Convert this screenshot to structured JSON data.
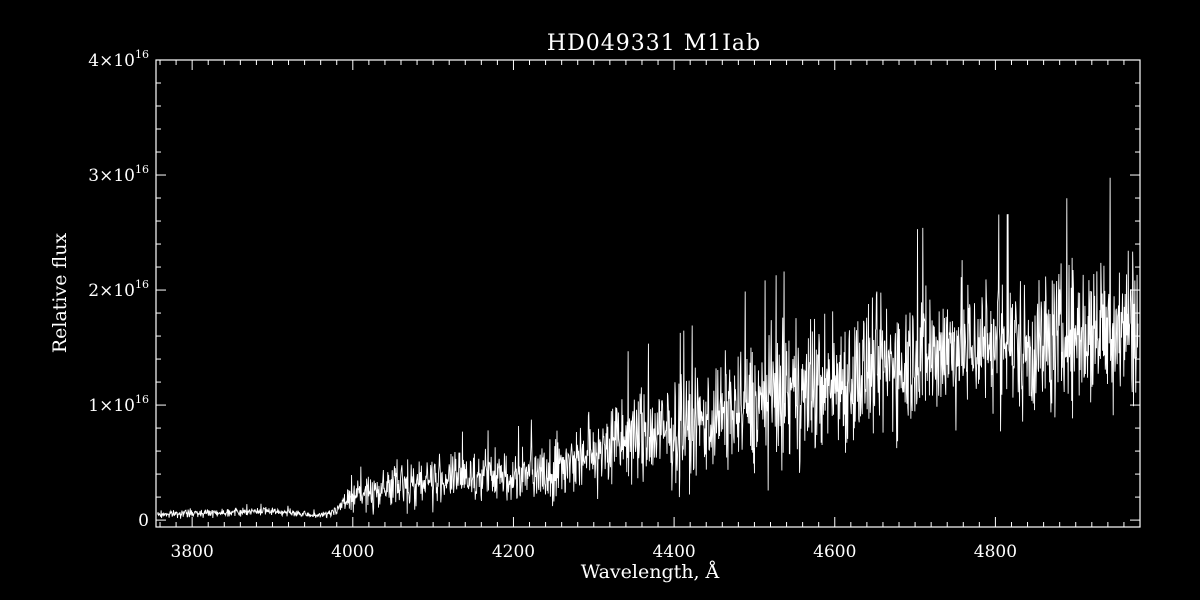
{
  "chart_data": {
    "type": "line",
    "title": "HD049331  M1Iab",
    "xlabel": "Wavelength, Å",
    "ylabel": "Relative flux",
    "xlim": [
      3755,
      4980
    ],
    "ylim": [
      -600000000000000.0,
      4e+16
    ],
    "x_ticks": [
      {
        "value": 3800,
        "label": "3800"
      },
      {
        "value": 4000,
        "label": "4000"
      },
      {
        "value": 4200,
        "label": "4200"
      },
      {
        "value": 4400,
        "label": "4400"
      },
      {
        "value": 4600,
        "label": "4600"
      },
      {
        "value": 4800,
        "label": "4800"
      }
    ],
    "y_ticks": [
      {
        "value": 0,
        "mantissa": "0",
        "exponent": ""
      },
      {
        "value": 1e+16,
        "mantissa": "1×10",
        "exponent": "16"
      },
      {
        "value": 2e+16,
        "mantissa": "2×10",
        "exponent": "16"
      },
      {
        "value": 3e+16,
        "mantissa": "3×10",
        "exponent": "16"
      },
      {
        "value": 4e+16,
        "mantissa": "4×10",
        "exponent": "16"
      }
    ],
    "grid": false,
    "legend": "none",
    "colors": {
      "background": "#000000",
      "foreground": "#ffffff"
    },
    "series": [
      {
        "envelope_x": [
          3760,
          3800,
          3850,
          3900,
          3950,
          3970,
          4000,
          4050,
          4100,
          4150,
          4200,
          4250,
          4300,
          4350,
          4400,
          4450,
          4500,
          4550,
          4600,
          4650,
          4700,
          4750,
          4800,
          4850,
          4900,
          4950,
          4980
        ],
        "mean": [
          500000000000000.0,
          600000000000000.0,
          700000000000000.0,
          800000000000000.0,
          400000000000000.0,
          500000000000000.0,
          2000000000000000.0,
          3000000000000000.0,
          3500000000000000.0,
          3800000000000000.0,
          3800000000000000.0,
          4500000000000000.0,
          6000000000000000.0,
          7200000000000000.0,
          7500000000000000.0,
          9000000000000000.0,
          1e+16,
          1.1e+16,
          1.2e+16,
          1.3e+16,
          1.42e+16,
          1.5e+16,
          1.55e+16,
          1.5e+16,
          1.6e+16,
          1.7e+16,
          1.75e+16
        ],
        "spread": [
          500000000000000.0,
          500000000000000.0,
          500000000000000.0,
          500000000000000.0,
          400000000000000.0,
          400000000000000.0,
          1600000000000000.0,
          3000000000000000.0,
          3200000000000000.0,
          3000000000000000.0,
          3200000000000000.0,
          4000000000000000.0,
          5200000000000000.0,
          6000000000000000.0,
          6500000000000000.0,
          7000000000000000.0,
          8000000000000000.0,
          8500000000000000.0,
          9000000000000000.0,
          9000000000000000.0,
          8500000000000000.0,
          8500000000000000.0,
          8500000000000000.0,
          9000000000000000.0,
          9500000000000000.0,
          1e+16,
          1e+16
        ]
      }
    ]
  }
}
